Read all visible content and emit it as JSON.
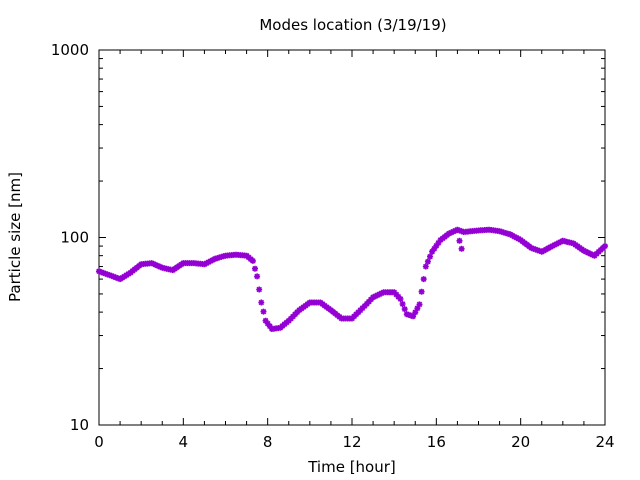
{
  "chart_data": {
    "type": "scatter",
    "title": "Modes location (3/19/19)",
    "xlabel": "Time [hour]",
    "ylabel": "Particle size [nm]",
    "xlim": [
      0,
      24
    ],
    "ylim": [
      10,
      1000
    ],
    "yscale": "log",
    "x_ticks": [
      0,
      4,
      8,
      12,
      16,
      20,
      24
    ],
    "x_tick_labels": [
      "0",
      "4",
      "8",
      "12",
      "16",
      "20",
      "24"
    ],
    "y_ticks": [
      10,
      100,
      1000
    ],
    "y_tick_labels": [
      "10",
      "100",
      "1000"
    ],
    "grid": false,
    "legend": "none",
    "marker_color": "#9400d3",
    "keypoints": [
      [
        0.0,
        66
      ],
      [
        0.5,
        63
      ],
      [
        1.0,
        60
      ],
      [
        1.5,
        65
      ],
      [
        2.0,
        72
      ],
      [
        2.5,
        73
      ],
      [
        3.0,
        69
      ],
      [
        3.5,
        67
      ],
      [
        4.0,
        73
      ],
      [
        4.5,
        73
      ],
      [
        5.0,
        72
      ],
      [
        5.5,
        77
      ],
      [
        6.0,
        80
      ],
      [
        6.5,
        81
      ],
      [
        7.0,
        80
      ],
      [
        7.3,
        75
      ],
      [
        7.5,
        62
      ],
      [
        7.7,
        45
      ],
      [
        7.9,
        36
      ],
      [
        8.2,
        32.5
      ],
      [
        8.6,
        33
      ],
      [
        9.0,
        36
      ],
      [
        9.5,
        41
      ],
      [
        10.0,
        45
      ],
      [
        10.5,
        45
      ],
      [
        11.0,
        41
      ],
      [
        11.5,
        37
      ],
      [
        12.0,
        37
      ],
      [
        12.5,
        42
      ],
      [
        13.0,
        48
      ],
      [
        13.5,
        51
      ],
      [
        14.0,
        51
      ],
      [
        14.3,
        47
      ],
      [
        14.6,
        39
      ],
      [
        14.9,
        38
      ],
      [
        15.2,
        44
      ],
      [
        15.5,
        70
      ],
      [
        15.8,
        84
      ],
      [
        16.2,
        97
      ],
      [
        16.6,
        105
      ],
      [
        17.0,
        110
      ],
      [
        17.3,
        107
      ],
      [
        18.0,
        109
      ],
      [
        18.5,
        110
      ],
      [
        19.0,
        108
      ],
      [
        19.5,
        104
      ],
      [
        20.0,
        97
      ],
      [
        20.5,
        88
      ],
      [
        21.0,
        84
      ],
      [
        21.5,
        90
      ],
      [
        22.0,
        96
      ],
      [
        22.5,
        93
      ],
      [
        23.0,
        85
      ],
      [
        23.5,
        80
      ],
      [
        24.0,
        90
      ]
    ],
    "outliers": [
      [
        17.1,
        96
      ],
      [
        17.2,
        87
      ]
    ]
  }
}
